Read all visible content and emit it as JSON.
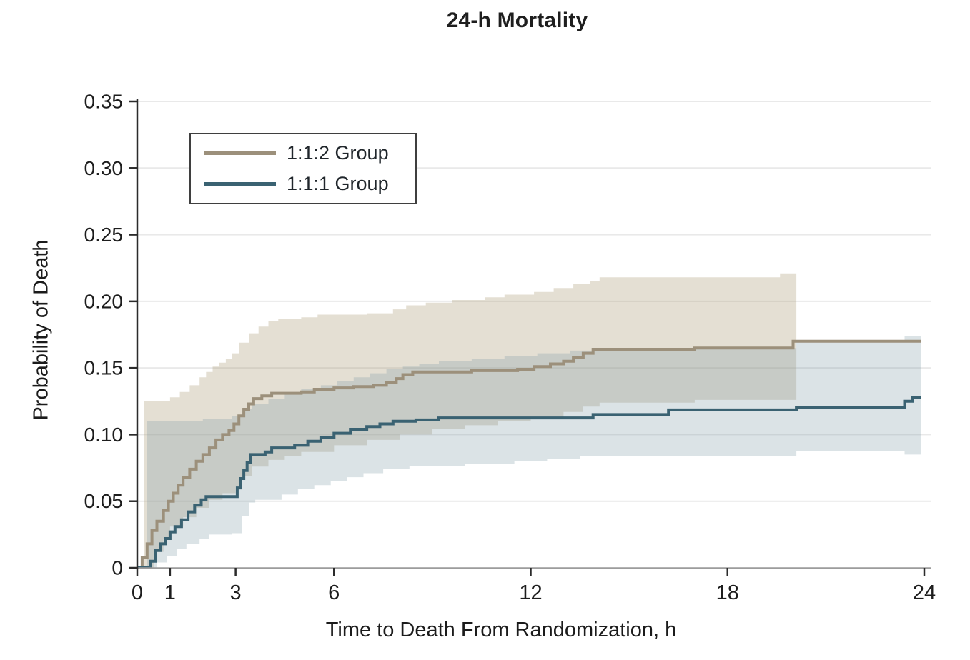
{
  "colors": {
    "tan_line": "#9c907b",
    "teal_line": "#3a6272",
    "tan_band": "rgba(176,160,127,0.34)",
    "teal_band": "rgba(122,153,164,0.27)",
    "grid": "#e9e9e9",
    "axis_dark": "#2b2b2b",
    "axis_bottom": "#9c9c9c",
    "text": "#1d1d1d"
  },
  "chart_data": {
    "type": "line",
    "subtype": "kaplan-meier-step",
    "title": "24-h Mortality",
    "xlabel": "Time to Death From Randomization, h",
    "ylabel": "Probability of Death",
    "xlim": [
      0,
      24
    ],
    "ylim": [
      0,
      0.35
    ],
    "grid": "horizontal",
    "legend_position": "upper-left-inside",
    "x_ticks": [
      {
        "v": 0,
        "label": "0"
      },
      {
        "v": 1,
        "label": "1"
      },
      {
        "v": 3,
        "label": "3"
      },
      {
        "v": 6,
        "label": "6"
      },
      {
        "v": 12,
        "label": "12"
      },
      {
        "v": 18,
        "label": "18"
      },
      {
        "v": 24,
        "label": "24"
      }
    ],
    "y_ticks": [
      {
        "v": 0,
        "label": "0"
      },
      {
        "v": 0.05,
        "label": "0.05"
      },
      {
        "v": 0.1,
        "label": "0.10"
      },
      {
        "v": 0.15,
        "label": "0.15"
      },
      {
        "v": 0.2,
        "label": "0.20"
      },
      {
        "v": 0.25,
        "label": "0.25"
      },
      {
        "v": 0.3,
        "label": "0.30"
      },
      {
        "v": 0.35,
        "label": "0.35"
      }
    ],
    "series": [
      {
        "name": "1:1:2 Group",
        "color": "#9c907b",
        "band_color": "rgba(176,160,127,0.34)",
        "points": [
          [
            0,
            0
          ],
          [
            0.15,
            0.008
          ],
          [
            0.3,
            0.018
          ],
          [
            0.45,
            0.028
          ],
          [
            0.6,
            0.035
          ],
          [
            0.8,
            0.043
          ],
          [
            0.95,
            0.05
          ],
          [
            1.1,
            0.056
          ],
          [
            1.25,
            0.062
          ],
          [
            1.4,
            0.068
          ],
          [
            1.6,
            0.074
          ],
          [
            1.8,
            0.08
          ],
          [
            2.0,
            0.085
          ],
          [
            2.2,
            0.09
          ],
          [
            2.4,
            0.096
          ],
          [
            2.6,
            0.1
          ],
          [
            2.8,
            0.103
          ],
          [
            2.95,
            0.108
          ],
          [
            3.1,
            0.114
          ],
          [
            3.25,
            0.119
          ],
          [
            3.4,
            0.123
          ],
          [
            3.55,
            0.127
          ],
          [
            3.8,
            0.129
          ],
          [
            4.1,
            0.131
          ],
          [
            5.0,
            0.132
          ],
          [
            5.4,
            0.134
          ],
          [
            6.0,
            0.135
          ],
          [
            6.6,
            0.136
          ],
          [
            7.2,
            0.137
          ],
          [
            7.6,
            0.139
          ],
          [
            7.9,
            0.142
          ],
          [
            8.1,
            0.145
          ],
          [
            8.4,
            0.147
          ],
          [
            9.5,
            0.147
          ],
          [
            10.2,
            0.148
          ],
          [
            11.6,
            0.149
          ],
          [
            12.1,
            0.151
          ],
          [
            12.6,
            0.153
          ],
          [
            13.0,
            0.155
          ],
          [
            13.3,
            0.158
          ],
          [
            13.6,
            0.161
          ],
          [
            13.9,
            0.164
          ],
          [
            16.0,
            0.164
          ],
          [
            17.0,
            0.165
          ],
          [
            19.8,
            0.165
          ],
          [
            20.0,
            0.17
          ],
          [
            23.9,
            0.17
          ]
        ],
        "upper": [
          [
            0.2,
            0.125
          ],
          [
            1.0,
            0.128
          ],
          [
            1.3,
            0.132
          ],
          [
            1.6,
            0.137
          ],
          [
            1.9,
            0.143
          ],
          [
            2.1,
            0.147
          ],
          [
            2.3,
            0.151
          ],
          [
            2.5,
            0.154
          ],
          [
            2.7,
            0.157
          ],
          [
            2.9,
            0.161
          ],
          [
            3.1,
            0.169
          ],
          [
            3.4,
            0.176
          ],
          [
            3.7,
            0.181
          ],
          [
            4.0,
            0.185
          ],
          [
            4.3,
            0.187
          ],
          [
            5.0,
            0.188
          ],
          [
            5.5,
            0.19
          ],
          [
            7.0,
            0.191
          ],
          [
            7.8,
            0.194
          ],
          [
            8.2,
            0.197
          ],
          [
            8.8,
            0.199
          ],
          [
            9.6,
            0.201
          ],
          [
            10.6,
            0.203
          ],
          [
            11.2,
            0.205
          ],
          [
            12.1,
            0.207
          ],
          [
            12.7,
            0.21
          ],
          [
            13.3,
            0.213
          ],
          [
            13.8,
            0.215
          ],
          [
            14.1,
            0.218
          ],
          [
            19.3,
            0.218
          ],
          [
            19.6,
            0.221
          ],
          [
            20.1,
            0.221
          ]
        ],
        "lower": [
          [
            0.2,
            0
          ],
          [
            0.5,
            0.012
          ],
          [
            0.8,
            0.022
          ],
          [
            1.0,
            0.031
          ],
          [
            1.4,
            0.038
          ],
          [
            1.8,
            0.045
          ],
          [
            2.2,
            0.051
          ],
          [
            2.6,
            0.056
          ],
          [
            3.0,
            0.061
          ],
          [
            3.2,
            0.069
          ],
          [
            3.5,
            0.076
          ],
          [
            4.0,
            0.081
          ],
          [
            4.5,
            0.084
          ],
          [
            5.0,
            0.087
          ],
          [
            6.0,
            0.092
          ],
          [
            7.0,
            0.096
          ],
          [
            8.0,
            0.1
          ],
          [
            9.0,
            0.104
          ],
          [
            10.0,
            0.107
          ],
          [
            11.0,
            0.11
          ],
          [
            12.0,
            0.113
          ],
          [
            13.0,
            0.117
          ],
          [
            13.6,
            0.121
          ],
          [
            14.1,
            0.124
          ],
          [
            17.0,
            0.126
          ],
          [
            20.1,
            0.126
          ]
        ]
      },
      {
        "name": "1:1:1 Group",
        "color": "#3a6272",
        "band_color": "rgba(122,153,164,0.27)",
        "points": [
          [
            0,
            0
          ],
          [
            0.25,
            0
          ],
          [
            0.4,
            0.005
          ],
          [
            0.55,
            0.013
          ],
          [
            0.7,
            0.018
          ],
          [
            0.85,
            0.022
          ],
          [
            1.0,
            0.027
          ],
          [
            1.15,
            0.031
          ],
          [
            1.35,
            0.036
          ],
          [
            1.55,
            0.042
          ],
          [
            1.75,
            0.047
          ],
          [
            1.95,
            0.051
          ],
          [
            2.1,
            0.0535
          ],
          [
            2.95,
            0.0535
          ],
          [
            3.05,
            0.06
          ],
          [
            3.15,
            0.067
          ],
          [
            3.25,
            0.073
          ],
          [
            3.35,
            0.079
          ],
          [
            3.45,
            0.085
          ],
          [
            3.9,
            0.087
          ],
          [
            4.1,
            0.09
          ],
          [
            4.8,
            0.092
          ],
          [
            5.2,
            0.095
          ],
          [
            5.6,
            0.098
          ],
          [
            6.0,
            0.101
          ],
          [
            6.5,
            0.104
          ],
          [
            7.0,
            0.106
          ],
          [
            7.4,
            0.108
          ],
          [
            7.8,
            0.11
          ],
          [
            8.5,
            0.111
          ],
          [
            9.2,
            0.1125
          ],
          [
            13.6,
            0.1125
          ],
          [
            13.9,
            0.115
          ],
          [
            16.2,
            0.1185
          ],
          [
            19.9,
            0.1185
          ],
          [
            20.1,
            0.1205
          ],
          [
            23.3,
            0.1205
          ],
          [
            23.4,
            0.125
          ],
          [
            23.65,
            0.128
          ],
          [
            23.9,
            0.128
          ]
        ],
        "upper": [
          [
            0.3,
            0.11
          ],
          [
            2.0,
            0.112
          ],
          [
            2.9,
            0.114
          ],
          [
            3.2,
            0.119
          ],
          [
            3.5,
            0.123
          ],
          [
            4.0,
            0.127
          ],
          [
            4.5,
            0.131
          ],
          [
            5.0,
            0.134
          ],
          [
            5.6,
            0.137
          ],
          [
            6.1,
            0.14
          ],
          [
            6.6,
            0.143
          ],
          [
            7.1,
            0.146
          ],
          [
            7.6,
            0.149
          ],
          [
            8.1,
            0.151
          ],
          [
            8.6,
            0.153
          ],
          [
            9.2,
            0.155
          ],
          [
            10.2,
            0.157
          ],
          [
            11.2,
            0.159
          ],
          [
            12.2,
            0.161
          ],
          [
            13.2,
            0.163
          ],
          [
            14.0,
            0.165
          ],
          [
            19.9,
            0.165
          ],
          [
            20.1,
            0.17
          ],
          [
            23.3,
            0.17
          ],
          [
            23.4,
            0.174
          ],
          [
            23.9,
            0.174
          ]
        ],
        "lower": [
          [
            0.3,
            0
          ],
          [
            0.6,
            0.004
          ],
          [
            0.9,
            0.009
          ],
          [
            1.2,
            0.014
          ],
          [
            1.5,
            0.018
          ],
          [
            1.9,
            0.022
          ],
          [
            2.2,
            0.025
          ],
          [
            2.9,
            0.026
          ],
          [
            3.2,
            0.039
          ],
          [
            3.4,
            0.049
          ],
          [
            3.6,
            0.051
          ],
          [
            4.4,
            0.055
          ],
          [
            4.9,
            0.059
          ],
          [
            5.4,
            0.062
          ],
          [
            5.9,
            0.065
          ],
          [
            6.4,
            0.068
          ],
          [
            6.9,
            0.071
          ],
          [
            7.5,
            0.074
          ],
          [
            8.3,
            0.0765
          ],
          [
            10.0,
            0.078
          ],
          [
            11.5,
            0.08
          ],
          [
            12.5,
            0.082
          ],
          [
            13.5,
            0.084
          ],
          [
            19.9,
            0.084
          ],
          [
            20.1,
            0.0875
          ],
          [
            23.3,
            0.0875
          ],
          [
            23.4,
            0.085
          ],
          [
            23.9,
            0.085
          ]
        ]
      }
    ]
  }
}
